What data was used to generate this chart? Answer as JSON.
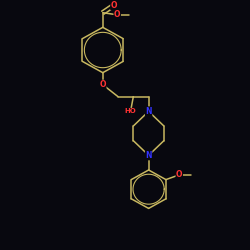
{
  "background_color": "#08080f",
  "bond_color": "#c8b860",
  "atom_colors": {
    "O": "#ff3333",
    "N": "#3333ff"
  },
  "figsize": [
    2.5,
    2.5
  ],
  "dpi": 100
}
